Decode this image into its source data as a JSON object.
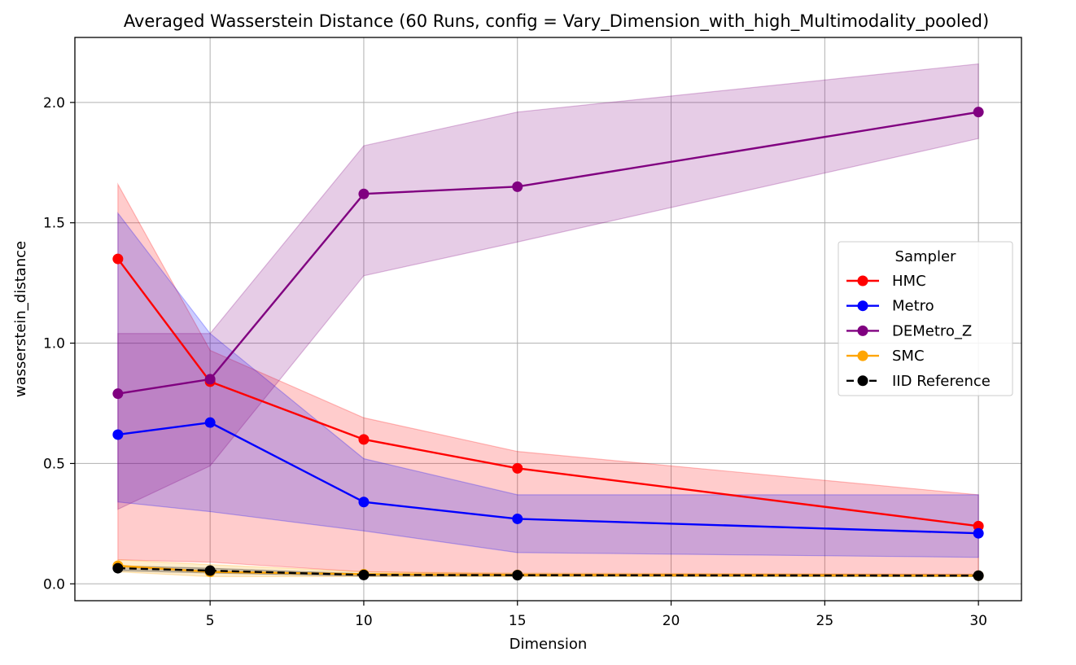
{
  "chart_data": {
    "type": "line",
    "title": "Averaged Wasserstein Distance (60 Runs, config = Vary_Dimension_with_high_Multimodality_pooled)",
    "xlabel": "Dimension",
    "ylabel": "wasserstein_distance",
    "xlim": [
      0.6,
      31.4
    ],
    "ylim": [
      -0.07,
      2.27
    ],
    "x_ticks": [
      5,
      10,
      15,
      20,
      25,
      30
    ],
    "y_ticks": [
      0.0,
      0.5,
      1.0,
      1.5,
      2.0
    ],
    "y_tick_labels": [
      "0.0",
      "0.5",
      "1.0",
      "1.5",
      "2.0"
    ],
    "grid": true,
    "legend": {
      "title": "Sampler",
      "position": "right"
    },
    "x": [
      2,
      5,
      10,
      15,
      30
    ],
    "series": [
      {
        "name": "HMC",
        "color": "#ff0000",
        "linestyle": "solid",
        "values": [
          1.35,
          0.84,
          0.6,
          0.48,
          0.24
        ],
        "band_lower": [
          0.1,
          0.09,
          0.05,
          0.04,
          0.04
        ],
        "band_upper": [
          1.66,
          0.97,
          0.69,
          0.55,
          0.37
        ]
      },
      {
        "name": "Metro",
        "color": "#0000ff",
        "linestyle": "solid",
        "values": [
          0.62,
          0.67,
          0.34,
          0.27,
          0.21
        ],
        "band_lower": [
          0.34,
          0.3,
          0.22,
          0.13,
          0.11
        ],
        "band_upper": [
          1.54,
          1.04,
          0.52,
          0.37,
          0.37
        ]
      },
      {
        "name": "DEMetro_Z",
        "color": "#800080",
        "linestyle": "solid",
        "values": [
          0.79,
          0.85,
          1.62,
          1.65,
          1.96
        ],
        "band_lower": [
          0.31,
          0.49,
          1.28,
          1.42,
          1.85
        ],
        "band_upper": [
          1.04,
          1.04,
          1.82,
          1.96,
          2.16
        ]
      },
      {
        "name": "SMC",
        "color": "#ffa500",
        "linestyle": "solid",
        "values": [
          0.075,
          0.05,
          0.04,
          0.037,
          0.034
        ],
        "band_lower": [
          0.05,
          0.03,
          0.03,
          0.03,
          0.03
        ],
        "band_upper": [
          0.1,
          0.08,
          0.05,
          0.045,
          0.04
        ]
      },
      {
        "name": "IID Reference",
        "color": "#000000",
        "linestyle": "dashed",
        "values": [
          0.065,
          0.055,
          0.037,
          0.036,
          0.034
        ],
        "band_lower": [
          0.055,
          0.045,
          0.032,
          0.032,
          0.03
        ],
        "band_upper": [
          0.075,
          0.065,
          0.042,
          0.04,
          0.038
        ]
      }
    ]
  }
}
